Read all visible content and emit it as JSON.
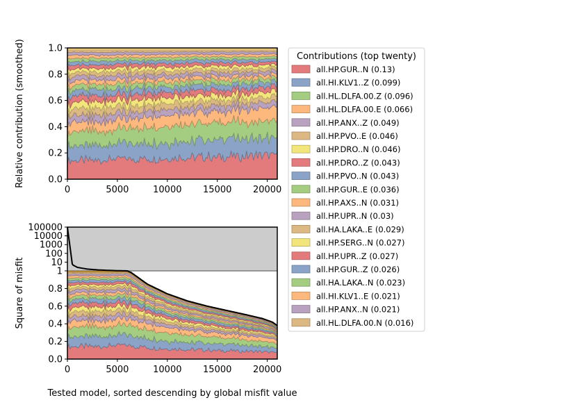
{
  "chart_data": [
    {
      "type": "area",
      "ylabel": "Relative contribution (smoothed)",
      "xlabel": "",
      "xlim": [
        0,
        21000
      ],
      "ylim": [
        0,
        1
      ],
      "xticks": [
        "0",
        "5000",
        "10000",
        "15000",
        "20000"
      ],
      "yticks": [
        "0.0",
        "0.2",
        "0.4",
        "0.6",
        "0.8",
        "1.0"
      ],
      "stacked": true,
      "total": 1.0,
      "legend": {
        "title": "Contributions (top twenty)",
        "placement": "right",
        "entries": [
          {
            "label": "all.HP.GUR..N (0.13)",
            "color": "#e37a7c"
          },
          {
            "label": "all.HI.KLV1..Z (0.099)",
            "color": "#8aa3c7"
          },
          {
            "label": "all.HL.DLFA.00.Z (0.096)",
            "color": "#a5cd81"
          },
          {
            "label": "all.HL.DLFA.00.E (0.066)",
            "color": "#fdb87d"
          },
          {
            "label": "all.HP.ANX..Z (0.049)",
            "color": "#b9a2bf"
          },
          {
            "label": "all.HP.PVO..E (0.046)",
            "color": "#dcb883"
          },
          {
            "label": "all.HP.DRO..N (0.046)",
            "color": "#f2e57c"
          },
          {
            "label": "all.HP.DRO..Z (0.043)",
            "color": "#e37a7c"
          },
          {
            "label": "all.HP.PVO..N (0.043)",
            "color": "#8aa3c7"
          },
          {
            "label": "all.HP.GUR..E (0.036)",
            "color": "#a5cd81"
          },
          {
            "label": "all.HP.AXS..N (0.031)",
            "color": "#fdb87d"
          },
          {
            "label": "all.HP.UPR..N (0.03)",
            "color": "#b9a2bf"
          },
          {
            "label": "all.HA.LAKA..E (0.029)",
            "color": "#dcb883"
          },
          {
            "label": "all.HP.SERG..N (0.027)",
            "color": "#f2e57c"
          },
          {
            "label": "all.HP.UPR..Z (0.027)",
            "color": "#e37a7c"
          },
          {
            "label": "all.HP.GUR..Z (0.026)",
            "color": "#8aa3c7"
          },
          {
            "label": "all.HA.LAKA..N (0.023)",
            "color": "#a5cd81"
          },
          {
            "label": "all.HI.KLV1..E (0.021)",
            "color": "#fdb87d"
          },
          {
            "label": "all.HP.ANX..N (0.021)",
            "color": "#b9a2bf"
          },
          {
            "label": "all.HL.DLFA.00.N (0.016)",
            "color": "#dcb883"
          }
        ]
      }
    },
    {
      "type": "area",
      "ylabel": "Square of misfit",
      "xlabel": "Tested model, sorted descending by global misfit value",
      "xlim": [
        0,
        21000
      ],
      "yscale": "linear below 1, log above 1",
      "yticks_lower": [
        "0.0",
        "0.2",
        "0.4",
        "0.6",
        "0.8",
        "1"
      ],
      "yticks_upper": [
        "10",
        "100",
        "1000",
        "10000",
        "100000"
      ],
      "xticks": [
        "0",
        "5000",
        "10000",
        "15000",
        "20000"
      ],
      "stacked": true,
      "total_misfit_curve": {
        "x": [
          0,
          500,
          1000,
          2000,
          3000,
          4000,
          5000,
          6000,
          6400,
          8000,
          10000,
          12000,
          14000,
          16000,
          18000,
          19500,
          20500,
          21000
        ],
        "y": [
          100000,
          5,
          2.5,
          1.6,
          1.3,
          1.15,
          1.05,
          1.0,
          0.98,
          0.85,
          0.74,
          0.66,
          0.6,
          0.55,
          0.5,
          0.46,
          0.42,
          0.38
        ]
      }
    }
  ]
}
